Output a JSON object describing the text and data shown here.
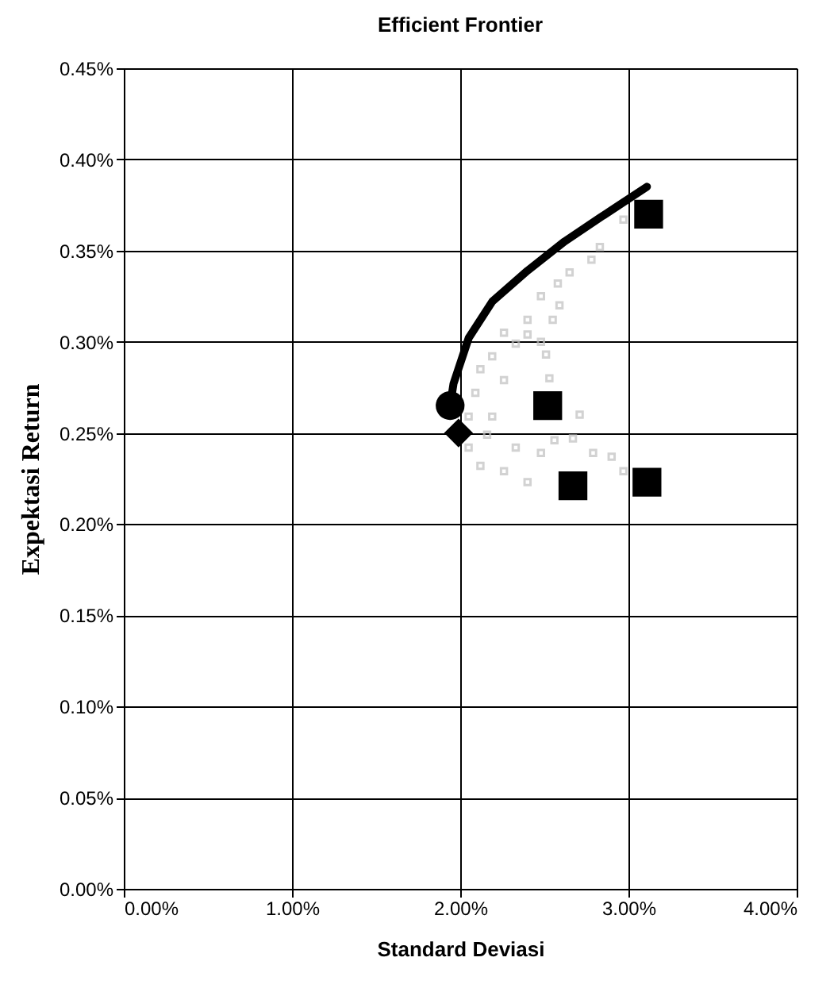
{
  "chart_data": {
    "type": "scatter",
    "title": "Efficient Frontier",
    "xlabel": "Standard Deviasi",
    "ylabel": "Expektasi Return",
    "xlim": [
      0,
      4
    ],
    "ylim": [
      0,
      0.45
    ],
    "xticks": [
      {
        "value": 0,
        "label": "0.00%"
      },
      {
        "value": 1,
        "label": "1.00%"
      },
      {
        "value": 2,
        "label": "2.00%"
      },
      {
        "value": 3,
        "label": "3.00%"
      },
      {
        "value": 4,
        "label": "4.00%"
      }
    ],
    "yticks": [
      {
        "value": 0,
        "label": "0.00%"
      },
      {
        "value": 0.05,
        "label": "0.05%"
      },
      {
        "value": 0.1,
        "label": "0.10%"
      },
      {
        "value": 0.15,
        "label": "0.15%"
      },
      {
        "value": 0.2,
        "label": "0.20%"
      },
      {
        "value": 0.25,
        "label": "0.25%"
      },
      {
        "value": 0.3,
        "label": "0.30%"
      },
      {
        "value": 0.35,
        "label": "0.35%"
      },
      {
        "value": 0.4,
        "label": "0.40%"
      },
      {
        "value": 0.45,
        "label": "0.45%"
      }
    ],
    "grid": true,
    "series": [
      {
        "marker": "square",
        "color": "#c0c0c0",
        "x": [
          2.97,
          2.83,
          2.78,
          2.65,
          2.58,
          2.59,
          2.55,
          2.48,
          2.4,
          2.4,
          2.48,
          2.51,
          2.33,
          2.26,
          2.19,
          2.12,
          2.09,
          2.26,
          2.53,
          2.71,
          2.19,
          2.05,
          2.12,
          2.26,
          2.4,
          2.48,
          2.56,
          2.67,
          2.79,
          2.9,
          2.97,
          2.33,
          2.16,
          2.05
        ],
        "values": [
          0.367,
          0.352,
          0.345,
          0.338,
          0.332,
          0.32,
          0.312,
          0.325,
          0.312,
          0.304,
          0.3,
          0.293,
          0.299,
          0.305,
          0.292,
          0.285,
          0.272,
          0.279,
          0.28,
          0.26,
          0.259,
          0.242,
          0.232,
          0.229,
          0.223,
          0.239,
          0.246,
          0.247,
          0.239,
          0.237,
          0.229,
          0.242,
          0.249,
          0.259
        ]
      },
      {
        "type": "line",
        "marker": "none",
        "color": "#000000",
        "x": [
          1.94,
          1.96,
          2.05,
          2.19,
          2.4,
          2.62,
          2.83,
          3.11
        ],
        "values": [
          0.265,
          0.277,
          0.302,
          0.322,
          0.339,
          0.355,
          0.368,
          0.385
        ]
      },
      {
        "marker": "circle",
        "color": "#000000",
        "x": [
          1.94
        ],
        "values": [
          0.265
        ]
      },
      {
        "marker": "diamond",
        "color": "#000000",
        "x": [
          1.99
        ],
        "values": [
          0.25
        ]
      },
      {
        "marker": "square",
        "color": "#000000",
        "x": [
          3.12,
          2.52,
          2.67,
          3.11
        ],
        "values": [
          0.37,
          0.265,
          0.221,
          0.223
        ]
      }
    ]
  }
}
